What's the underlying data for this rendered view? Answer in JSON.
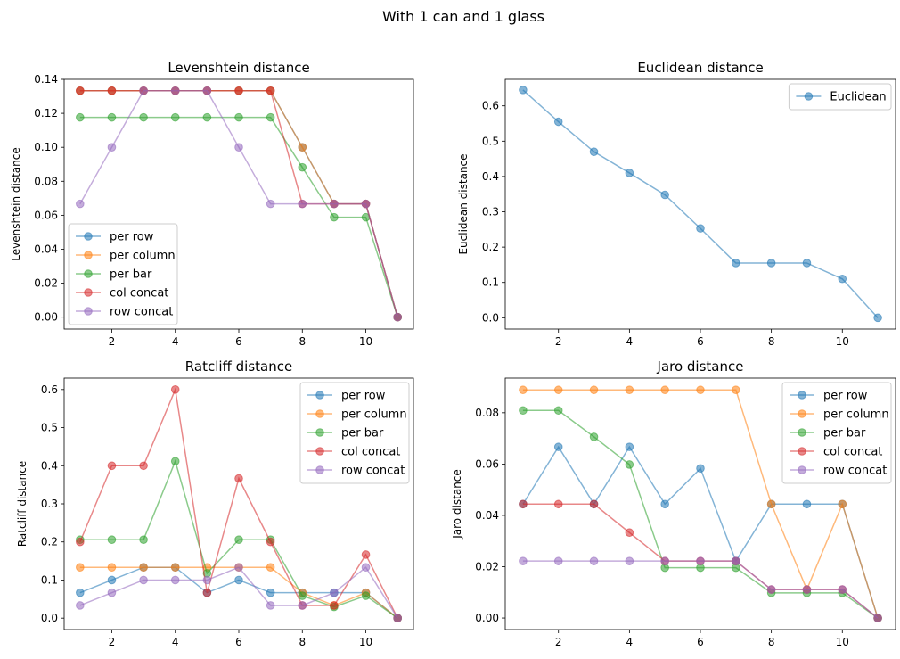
{
  "figure": {
    "suptitle": "With 1 can and 1 glass"
  },
  "palette": {
    "per row": "#1f77b4",
    "per column": "#ff7f0e",
    "per bar": "#2ca02c",
    "col concat": "#d62728",
    "row concat": "#9467bd",
    "Euclidean": "#1f77b4"
  },
  "chart_data": [
    {
      "id": "lev",
      "type": "line",
      "title": "Levenshtein distance",
      "xlabel": "",
      "ylabel": "Levenshtein distance",
      "xlim": [
        0.5,
        11.5
      ],
      "ylim": [
        -0.007,
        0.14
      ],
      "xticks": [
        2,
        4,
        6,
        8,
        10
      ],
      "yticks": [
        0.0,
        0.02,
        0.04,
        0.06,
        0.08,
        0.1,
        0.12,
        0.14
      ],
      "ytick_decimals": 2,
      "legend": "lower-left",
      "x": [
        1,
        2,
        3,
        4,
        5,
        6,
        7,
        8,
        9,
        10,
        11
      ],
      "series": [
        {
          "name": "per row",
          "values": [
            0.1333,
            0.1333,
            0.1333,
            0.1333,
            0.1333,
            0.1333,
            0.1333,
            0.1,
            0.0667,
            0.0667,
            0.0
          ]
        },
        {
          "name": "per column",
          "values": [
            0.1333,
            0.1333,
            0.1333,
            0.1333,
            0.1333,
            0.1333,
            0.1333,
            0.1,
            0.0667,
            0.0667,
            0.0
          ]
        },
        {
          "name": "per bar",
          "values": [
            0.1176,
            0.1176,
            0.1176,
            0.1176,
            0.1176,
            0.1176,
            0.1176,
            0.0882,
            0.0588,
            0.0588,
            0.0
          ]
        },
        {
          "name": "col concat",
          "values": [
            0.1333,
            0.1333,
            0.1333,
            0.1333,
            0.1333,
            0.1333,
            0.1333,
            0.0667,
            0.0667,
            0.0667,
            0.0
          ]
        },
        {
          "name": "row concat",
          "values": [
            0.0667,
            0.1,
            0.1333,
            0.1333,
            0.1333,
            0.1,
            0.0667,
            0.0667,
            0.0667,
            0.0667,
            0.0
          ]
        }
      ]
    },
    {
      "id": "euc",
      "type": "line",
      "title": "Euclidean distance",
      "xlabel": "",
      "ylabel": "Euclidean distance",
      "xlim": [
        0.5,
        11.5
      ],
      "ylim": [
        -0.032,
        0.675
      ],
      "xticks": [
        2,
        4,
        6,
        8,
        10
      ],
      "yticks": [
        0.0,
        0.1,
        0.2,
        0.3,
        0.4,
        0.5,
        0.6
      ],
      "ytick_decimals": 1,
      "legend": "upper-right",
      "x": [
        1,
        2,
        3,
        4,
        5,
        6,
        7,
        8,
        9,
        10,
        11
      ],
      "series": [
        {
          "name": "Euclidean",
          "values": [
            0.645,
            0.555,
            0.47,
            0.41,
            0.348,
            0.253,
            0.155,
            0.155,
            0.155,
            0.11,
            0.0
          ]
        }
      ]
    },
    {
      "id": "rat",
      "type": "line",
      "title": "Ratcliff distance",
      "xlabel": "",
      "ylabel": "Ratcliff distance",
      "xlim": [
        0.5,
        11.5
      ],
      "ylim": [
        -0.03,
        0.63
      ],
      "xticks": [
        2,
        4,
        6,
        8,
        10
      ],
      "yticks": [
        0.0,
        0.1,
        0.2,
        0.3,
        0.4,
        0.5,
        0.6
      ],
      "ytick_decimals": 1,
      "legend": "upper-right",
      "x": [
        1,
        2,
        3,
        4,
        5,
        6,
        7,
        8,
        9,
        10,
        11
      ],
      "series": [
        {
          "name": "per row",
          "values": [
            0.0667,
            0.1,
            0.1333,
            0.1333,
            0.0667,
            0.1,
            0.0667,
            0.0667,
            0.0667,
            0.0667,
            0.0
          ]
        },
        {
          "name": "per column",
          "values": [
            0.1333,
            0.1333,
            0.1333,
            0.1333,
            0.1333,
            0.1333,
            0.1333,
            0.0667,
            0.0333,
            0.0667,
            0.0
          ]
        },
        {
          "name": "per bar",
          "values": [
            0.2059,
            0.2059,
            0.2059,
            0.4118,
            0.1176,
            0.2059,
            0.2059,
            0.0588,
            0.0294,
            0.0588,
            0.0
          ]
        },
        {
          "name": "col concat",
          "values": [
            0.2,
            0.4,
            0.4,
            0.6,
            0.0667,
            0.3667,
            0.2,
            0.0333,
            0.0333,
            0.1667,
            0.0
          ]
        },
        {
          "name": "row concat",
          "values": [
            0.0333,
            0.0667,
            0.1,
            0.1,
            0.1,
            0.1333,
            0.0333,
            0.0333,
            0.0667,
            0.1333,
            0.0
          ]
        }
      ]
    },
    {
      "id": "jaro",
      "type": "line",
      "title": "Jaro distance",
      "xlabel": "",
      "ylabel": "Jaro distance",
      "xlim": [
        0.5,
        11.5
      ],
      "ylim": [
        -0.0045,
        0.0935
      ],
      "xticks": [
        2,
        4,
        6,
        8,
        10
      ],
      "yticks": [
        0.0,
        0.02,
        0.04,
        0.06,
        0.08
      ],
      "ytick_decimals": 2,
      "legend": "upper-right",
      "x": [
        1,
        2,
        3,
        4,
        5,
        6,
        7,
        8,
        9,
        10,
        11
      ],
      "series": [
        {
          "name": "per row",
          "values": [
            0.0444,
            0.0667,
            0.0444,
            0.0667,
            0.0444,
            0.0583,
            0.0222,
            0.0444,
            0.0444,
            0.0444,
            0.0
          ]
        },
        {
          "name": "per column",
          "values": [
            0.0889,
            0.0889,
            0.0889,
            0.0889,
            0.0889,
            0.0889,
            0.0889,
            0.0444,
            0.0111,
            0.0444,
            0.0
          ]
        },
        {
          "name": "per bar",
          "values": [
            0.0809,
            0.0809,
            0.0706,
            0.0598,
            0.0196,
            0.0196,
            0.0196,
            0.0098,
            0.0098,
            0.0098,
            0.0
          ]
        },
        {
          "name": "col concat",
          "values": [
            0.0444,
            0.0444,
            0.0444,
            0.0333,
            0.0222,
            0.0222,
            0.0222,
            0.0111,
            0.0111,
            0.0111,
            0.0
          ]
        },
        {
          "name": "row concat",
          "values": [
            0.0222,
            0.0222,
            0.0222,
            0.0222,
            0.0222,
            0.0222,
            0.0222,
            0.0111,
            0.0111,
            0.0111,
            0.0
          ]
        }
      ]
    }
  ]
}
